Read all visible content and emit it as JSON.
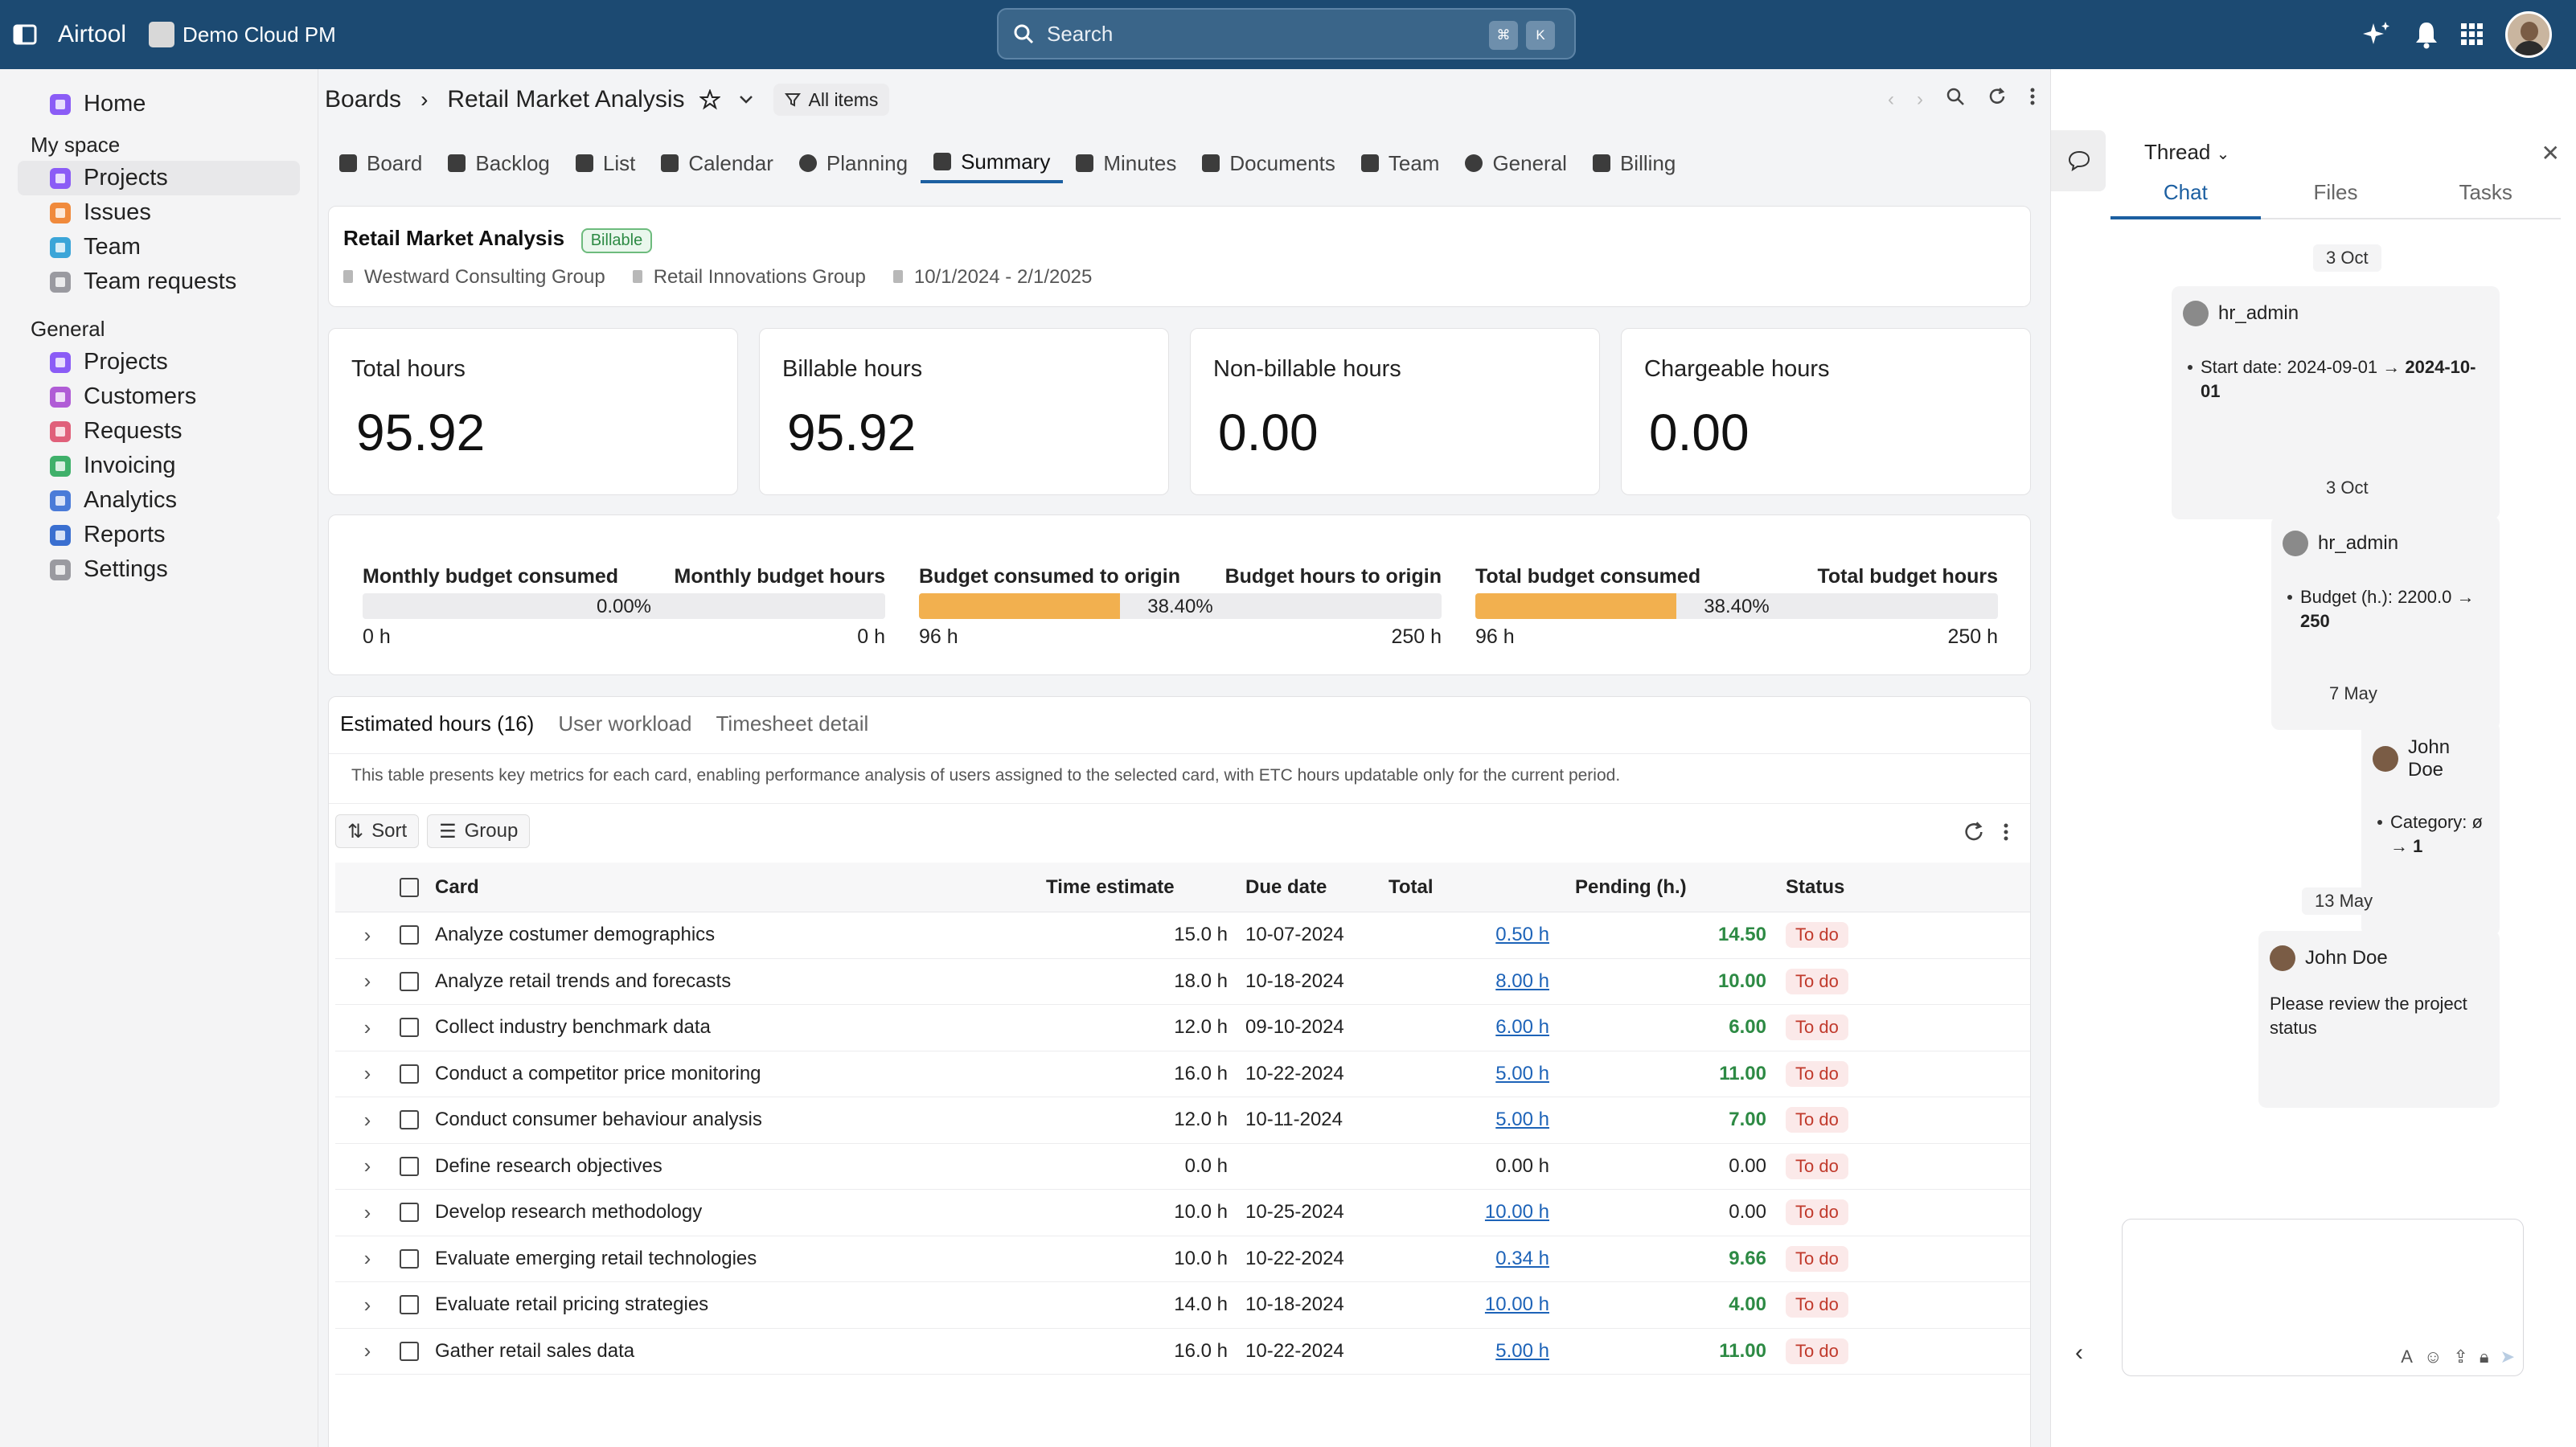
{
  "app": {
    "name": "Airtool",
    "workspace": "Demo Cloud PM"
  },
  "search": {
    "placeholder": "Search",
    "key1": "⌘",
    "key2": "K"
  },
  "sidebar": {
    "home": "Home",
    "my_space_label": "My space",
    "my_space": [
      "Projects",
      "Issues",
      "Team",
      "Team requests"
    ],
    "general_label": "General",
    "general": [
      "Projects",
      "Customers",
      "Requests",
      "Invoicing",
      "Analytics",
      "Reports",
      "Settings"
    ]
  },
  "colors": {
    "brand": "#1c4a72",
    "accent": "#1c5fa1",
    "budget_fill": "#f2b04f",
    "positive": "#2d8a44",
    "todo": "#c0392b"
  },
  "breadcrumb": {
    "root": "Boards",
    "current": "Retail Market Analysis",
    "filter": "All items"
  },
  "tabs": [
    "Board",
    "Backlog",
    "List",
    "Calendar",
    "Planning",
    "Summary",
    "Minutes",
    "Documents",
    "Team",
    "General",
    "Billing"
  ],
  "project": {
    "title": "Retail Market Analysis",
    "badge": "Billable",
    "consultant": "Westward Consulting Group",
    "customer": "Retail Innovations Group",
    "period": "10/1/2024 - 2/1/2025"
  },
  "kpis": [
    {
      "label": "Total hours",
      "value": "95.92"
    },
    {
      "label": "Billable hours",
      "value": "95.92"
    },
    {
      "label": "Non-billable hours",
      "value": "0.00"
    },
    {
      "label": "Chargeable hours",
      "value": "0.00"
    }
  ],
  "budgets": [
    {
      "left_label": "Monthly budget consumed",
      "right_label": "Monthly budget hours",
      "pct": "0.00%",
      "fraction": 0.0,
      "left_value": "0 h",
      "right_value": "0 h"
    },
    {
      "left_label": "Budget consumed to origin",
      "right_label": "Budget hours to origin",
      "pct": "38.40%",
      "fraction": 0.384,
      "left_value": "96 h",
      "right_value": "250 h"
    },
    {
      "left_label": "Total budget consumed",
      "right_label": "Total budget hours",
      "pct": "38.40%",
      "fraction": 0.384,
      "left_value": "96 h",
      "right_value": "250 h"
    }
  ],
  "subtabs": [
    "Estimated hours (16)",
    "User workload",
    "Timesheet detail"
  ],
  "table_description": "This table presents key metrics for each card, enabling performance analysis of users assigned to the selected card, with ETC hours updatable only for the current period.",
  "toolbar": {
    "sort": "Sort",
    "group": "Group"
  },
  "table": {
    "headers": [
      "Card",
      "Time estimate",
      "Due date",
      "Total",
      "Pending (h.)",
      "Status"
    ],
    "rows": [
      {
        "card": "Analyze costumer demographics",
        "estimate": "15.0 h",
        "due": "10-07-2024",
        "total": "0.50 h",
        "total_link": true,
        "pending": "14.50",
        "positive": true,
        "status": "To do"
      },
      {
        "card": "Analyze retail trends and forecasts",
        "estimate": "18.0 h",
        "due": "10-18-2024",
        "total": "8.00 h",
        "total_link": true,
        "pending": "10.00",
        "positive": true,
        "status": "To do"
      },
      {
        "card": "Collect industry benchmark data",
        "estimate": "12.0 h",
        "due": "09-10-2024",
        "total": "6.00 h",
        "total_link": true,
        "pending": "6.00",
        "positive": true,
        "status": "To do"
      },
      {
        "card": "Conduct a competitor price monitoring",
        "estimate": "16.0 h",
        "due": "10-22-2024",
        "total": "5.00 h",
        "total_link": true,
        "pending": "11.00",
        "positive": true,
        "status": "To do"
      },
      {
        "card": "Conduct consumer behaviour analysis",
        "estimate": "12.0 h",
        "due": "10-11-2024",
        "total": "5.00 h",
        "total_link": true,
        "pending": "7.00",
        "positive": true,
        "status": "To do"
      },
      {
        "card": "Define research objectives",
        "estimate": "0.0 h",
        "due": "",
        "total": "0.00 h",
        "total_link": false,
        "pending": "0.00",
        "positive": false,
        "status": "To do"
      },
      {
        "card": "Develop research methodology",
        "estimate": "10.0 h",
        "due": "10-25-2024",
        "total": "10.00 h",
        "total_link": true,
        "pending": "0.00",
        "positive": false,
        "status": "To do"
      },
      {
        "card": "Evaluate emerging retail technologies",
        "estimate": "10.0 h",
        "due": "10-22-2024",
        "total": "0.34 h",
        "total_link": true,
        "pending": "9.66",
        "positive": true,
        "status": "To do"
      },
      {
        "card": "Evaluate retail pricing strategies",
        "estimate": "14.0 h",
        "due": "10-18-2024",
        "total": "10.00 h",
        "total_link": true,
        "pending": "4.00",
        "positive": true,
        "status": "To do"
      },
      {
        "card": "Gather retail sales data",
        "estimate": "16.0 h",
        "due": "10-22-2024",
        "total": "5.00 h",
        "total_link": true,
        "pending": "11.00",
        "positive": true,
        "status": "To do"
      }
    ]
  },
  "thread": {
    "title": "Thread",
    "tabs": [
      "Chat",
      "Files",
      "Tasks"
    ],
    "messages": [
      {
        "date": "3 Oct",
        "author": "hr_admin",
        "text": "Start date: 2024-09-01 → ",
        "bold": "2024-10-01"
      },
      {
        "date": "3 Oct",
        "author": "hr_admin",
        "text": "Budget (h.): 2200.0 → ",
        "bold": "250"
      },
      {
        "date": "7 May",
        "author": "John Doe",
        "text": "Category: ø → ",
        "bold": "1"
      },
      {
        "date": "13 May",
        "author": "John Doe",
        "text": "Please review the project status",
        "bold": ""
      }
    ]
  }
}
